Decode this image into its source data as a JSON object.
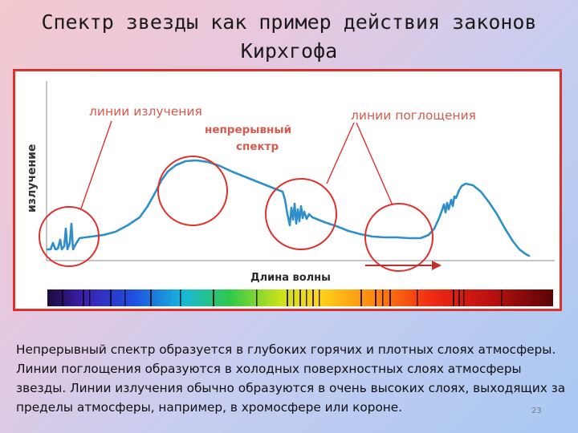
{
  "slide": {
    "title_line1": "Спектр звезды как пример действия законов",
    "title_line2": "Кирхгофа",
    "page_number": "23"
  },
  "figure": {
    "y_axis_label": "излучение",
    "x_axis_label": "Длина волны",
    "label_emission": "линии излучения",
    "label_continuous_line1": "непрерывный",
    "label_continuous_line2": "спектр",
    "label_absorption": "линии поглощения",
    "colors": {
      "curve": "#2e8fc9",
      "circles": "#e0302c",
      "callout_lines": "#e0302c",
      "frame": "#e0302c",
      "label_text": "#d85a4e",
      "axis_arrow": "#c0302c"
    }
  },
  "caption": {
    "text": "Непрерывный спектр образуется в глубоких горячих и плотных слоях атмосферы. Линии поглощения образуются в холодных поверхностных слоях атмосферы звезды. Линии излучения обычно образуются в очень высоких слоях, выходящих за пределы атмосферы, например, в хромосфере или короне."
  }
}
